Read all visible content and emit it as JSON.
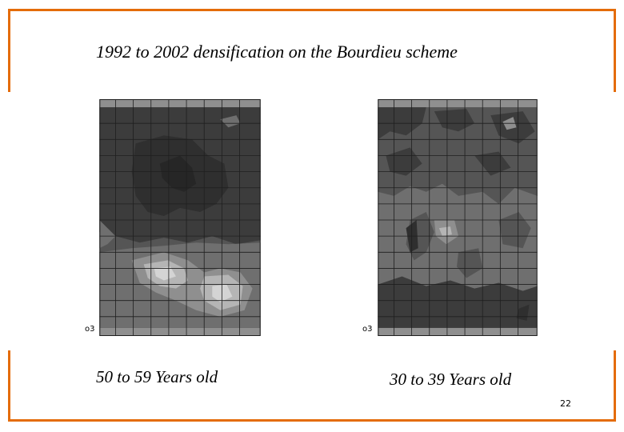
{
  "slide": {
    "title": "1992 to 2002 densification on the Bourdieu scheme",
    "page_number": "22"
  },
  "maps": {
    "left_caption": "50 to 59 Years old",
    "right_caption": "30 to 39 Years old",
    "axis_mark": "o3"
  },
  "colors": {
    "frame": "#e46c0a",
    "level_1": "#2f2f2f",
    "level_2": "#3c3c3c",
    "level_3": "#555555",
    "level_4": "#6f6f6f",
    "level_5": "#8f8f8f",
    "level_6": "#b5b5b5",
    "level_7": "#d4d4d4"
  }
}
